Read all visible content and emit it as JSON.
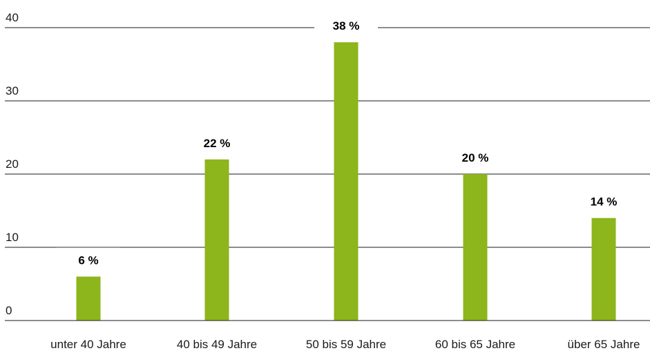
{
  "chart_data": {
    "type": "bar",
    "categories": [
      "unter 40 Jahre",
      "40 bis 49 Jahre",
      "50 bis 59 Jahre",
      "60 bis 65 Jahre",
      "über 65 Jahre"
    ],
    "values": [
      6,
      22,
      38,
      20,
      14
    ],
    "data_labels": [
      "6 %",
      "22 %",
      "38 %",
      "20 %",
      "14 %"
    ],
    "y_ticks": [
      0,
      10,
      20,
      30,
      40
    ],
    "ylim": [
      0,
      40
    ],
    "grid": true,
    "legend": "none",
    "title": "",
    "xlabel": "",
    "ylabel": "",
    "colors": {
      "bar": "#8db51c",
      "grid": "#1a1a1a",
      "text": "#1a1a1a"
    }
  }
}
